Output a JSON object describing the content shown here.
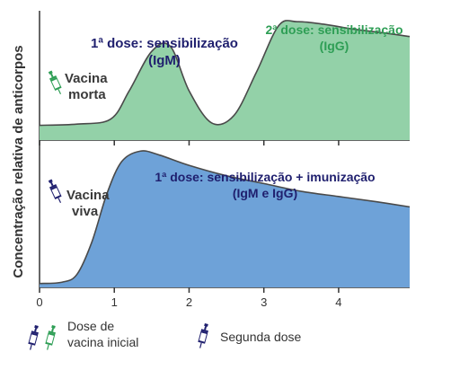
{
  "chart_data": [
    {
      "type": "area",
      "panel": "top",
      "color": "#93d1a8",
      "stroke": "#4a4a4a",
      "x": [
        0,
        0.5,
        0.95,
        1.2,
        1.5,
        1.75,
        2.0,
        2.3,
        2.6,
        2.9,
        3.2,
        3.45,
        3.8,
        4.2,
        4.6,
        4.95
      ],
      "y": [
        0.12,
        0.13,
        0.17,
        0.4,
        0.72,
        0.76,
        0.4,
        0.14,
        0.2,
        0.55,
        0.93,
        0.96,
        0.94,
        0.9,
        0.87,
        0.84
      ],
      "xlim": [
        0,
        4.95
      ],
      "ylim": [
        0,
        1.1
      ],
      "vaccine_label": [
        "Vacina",
        "morta"
      ],
      "annotations": [
        {
          "lines": [
            "1ª dose: sensibilização",
            "(IgM)"
          ],
          "color": "#1f1f6e"
        },
        {
          "lines": [
            "2ª dose: sensibilização",
            "(IgG)"
          ],
          "color": "#2e9e55"
        }
      ]
    },
    {
      "type": "area",
      "panel": "bottom",
      "color": "#6ea2d8",
      "stroke": "#4a4a4a",
      "x": [
        0,
        0.3,
        0.5,
        0.7,
        0.9,
        1.1,
        1.35,
        1.6,
        2.0,
        2.5,
        3.0,
        3.5,
        4.0,
        4.5,
        4.95
      ],
      "y": [
        0.03,
        0.04,
        0.1,
        0.35,
        0.72,
        0.97,
        1.05,
        1.02,
        0.94,
        0.86,
        0.8,
        0.74,
        0.7,
        0.66,
        0.62
      ],
      "xlim": [
        0,
        4.95
      ],
      "ylim": [
        0,
        1.1
      ],
      "vaccine_label": [
        "Vacina",
        "viva"
      ],
      "annotations": [
        {
          "lines": [
            "1ª dose: sensibilização +  imunização",
            "(IgM e IgG)"
          ],
          "color": "#1f1f6e"
        }
      ]
    }
  ],
  "axis": {
    "ylabel": "Concentração relativa de anticorpos",
    "xticks": [
      "0",
      "1",
      "2",
      "3",
      "4"
    ]
  },
  "legend": {
    "initial_dose": [
      "Dose de",
      "vacina inicial"
    ],
    "second_dose": "Segunda dose"
  },
  "colors": {
    "syringe_blue": "#1f1f6e",
    "syringe_green": "#2e9e55",
    "axis": "#333333"
  }
}
